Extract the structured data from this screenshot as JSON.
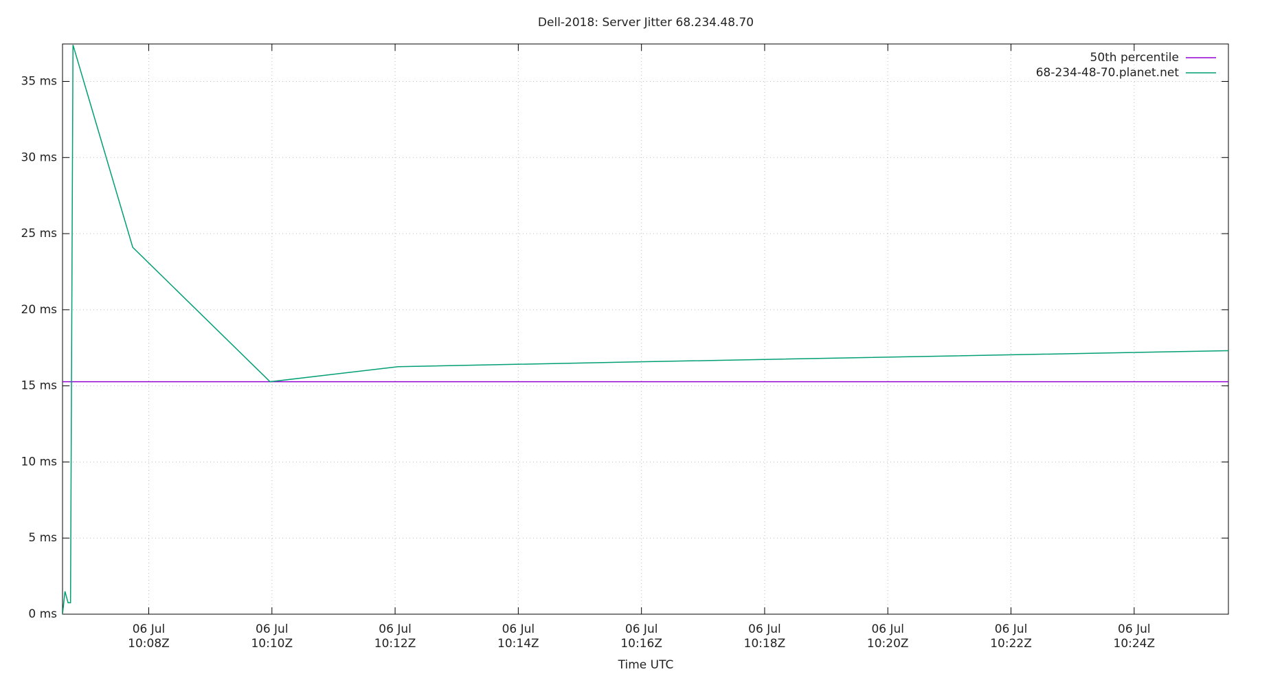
{
  "chart_data": {
    "type": "line",
    "title": "Dell-2018: Server Jitter 68.234.48.70",
    "x_label": "Time UTC",
    "x": [
      606.6,
      606.64,
      606.69,
      606.73,
      606.77,
      607.74,
      609.97,
      612.05,
      615.99,
      625.53
    ],
    "series": [
      {
        "name": "50th percentile",
        "color": "#9400d3",
        "values": [
          15.27,
          15.27,
          15.27,
          15.27,
          15.27,
          15.27,
          15.27,
          15.27,
          15.27,
          15.27
        ]
      },
      {
        "name": "68-234-48-70.planet.net",
        "color": "#009e73",
        "values": [
          0,
          1.5,
          0.75,
          0.75,
          37.4,
          24.1,
          15.27,
          16.26,
          16.58,
          17.31
        ]
      }
    ],
    "xlim": [
      606.6,
      625.53
    ],
    "ylim": [
      0,
      37.46
    ],
    "xticks": [
      {
        "value": 608,
        "label": "06 Jul\n10:08Z"
      },
      {
        "value": 610,
        "label": "06 Jul\n10:10Z"
      },
      {
        "value": 612,
        "label": "06 Jul\n10:12Z"
      },
      {
        "value": 614,
        "label": "06 Jul\n10:14Z"
      },
      {
        "value": 616,
        "label": "06 Jul\n10:16Z"
      },
      {
        "value": 618,
        "label": "06 Jul\n10:18Z"
      },
      {
        "value": 620,
        "label": "06 Jul\n10:20Z"
      },
      {
        "value": 622,
        "label": "06 Jul\n10:22Z"
      },
      {
        "value": 624,
        "label": "06 Jul\n10:24Z"
      }
    ],
    "yticks": [
      {
        "value": 0,
        "label": "0 ms"
      },
      {
        "value": 5,
        "label": "5 ms"
      },
      {
        "value": 10,
        "label": "10 ms"
      },
      {
        "value": 15,
        "label": "15 ms"
      },
      {
        "value": 20,
        "label": "20 ms"
      },
      {
        "value": 25,
        "label": "25 ms"
      },
      {
        "value": 30,
        "label": "30 ms"
      },
      {
        "value": 35,
        "label": "35 ms"
      }
    ],
    "grid": true,
    "legend": "top-right"
  }
}
